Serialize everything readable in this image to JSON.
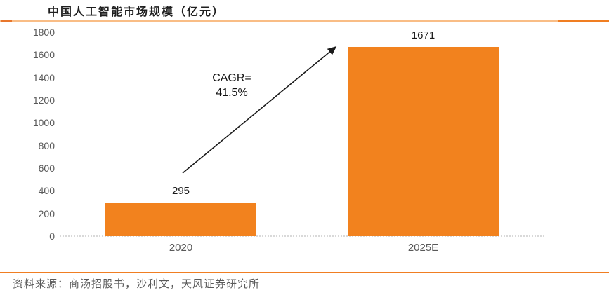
{
  "header": {
    "title": "中国人工智能市场规模（亿元）"
  },
  "chart_data": {
    "type": "bar",
    "title": "中国人工智能市场规模（亿元）",
    "categories": [
      "2020",
      "2025E"
    ],
    "values": [
      295,
      1671
    ],
    "value_labels": [
      "295",
      "1671"
    ],
    "ylim": [
      0,
      1800
    ],
    "ytick_step": 200,
    "yticks": [
      0,
      200,
      400,
      600,
      800,
      1000,
      1200,
      1400,
      1600,
      1800
    ],
    "grid": false,
    "legend": "none",
    "annotation": {
      "line1": "CAGR=",
      "line2": "41.5%"
    },
    "bar_color": "#f2821e"
  },
  "footer": {
    "source": "资料来源：商汤招股书，沙利文，天风证券研究所"
  },
  "colors": {
    "bar": "#f2821e",
    "accent_strong": "#e8762c",
    "accent_mid": "#f07e22",
    "accent_light": "#f9bd86",
    "axis_text": "#595959",
    "value_text": "#1a1a1a",
    "baseline": "#d9d9d9",
    "arrow": "#1a1a1a"
  }
}
